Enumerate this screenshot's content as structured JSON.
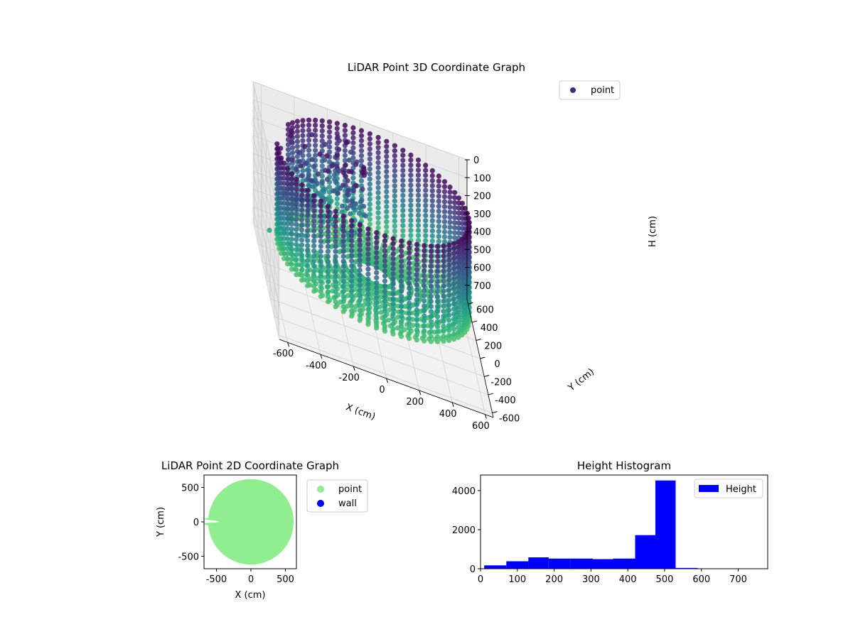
{
  "chart_data": [
    {
      "type": "scatter3d",
      "title": "LiDAR Point 3D Coordinate Graph",
      "xlabel": "X (cm)",
      "ylabel": "Y (cm)",
      "zlabel": "H (cm)",
      "xlim": [
        -650,
        650
      ],
      "ylim": [
        -650,
        650
      ],
      "zlim": [
        0,
        780
      ],
      "z_inverted": true,
      "x_ticks": [
        "-600",
        "-400",
        "-200",
        "0",
        "200",
        "400",
        "600"
      ],
      "y_ticks": [
        "-600",
        "-400",
        "-200",
        "0",
        "200",
        "400",
        "600"
      ],
      "z_ticks": [
        "0",
        "100",
        "200",
        "300",
        "400",
        "500",
        "600",
        "700"
      ],
      "colormap": "viridis",
      "legend": [
        "point"
      ],
      "legend_position": "upper right",
      "wall_radius": 580,
      "wall_height": 560,
      "wall_columns": 72
    },
    {
      "type": "scatter",
      "title": "LiDAR Point 2D Coordinate Graph",
      "xlabel": "X (cm)",
      "ylabel": "Y (cm)",
      "xlim": [
        -680,
        660
      ],
      "ylim": [
        -680,
        680
      ],
      "x_ticks": [
        "-500",
        "0",
        "500"
      ],
      "y_ticks": [
        "-500",
        "0",
        "500"
      ],
      "legend_position": "outside right",
      "series": [
        {
          "name": "point",
          "color": "#90ee90",
          "radius": 620
        },
        {
          "name": "wall",
          "color": "#0000ff"
        }
      ]
    },
    {
      "type": "bar",
      "title": "Height Histogram",
      "xlabel": "",
      "ylabel": "",
      "xlim": [
        0,
        780
      ],
      "ylim": [
        0,
        4800
      ],
      "x_ticks": [
        "0",
        "100",
        "200",
        "300",
        "400",
        "500",
        "600",
        "700"
      ],
      "y_ticks": [
        "0",
        "2000",
        "4000"
      ],
      "legend_position": "upper right",
      "series": [
        {
          "name": "Height",
          "color": "#0000ff",
          "bins": [
            {
              "x0": 10,
              "x1": 70,
              "value": 170
            },
            {
              "x0": 70,
              "x1": 130,
              "value": 380
            },
            {
              "x0": 130,
              "x1": 185,
              "value": 580
            },
            {
              "x0": 185,
              "x1": 245,
              "value": 520
            },
            {
              "x0": 245,
              "x1": 305,
              "value": 520
            },
            {
              "x0": 305,
              "x1": 360,
              "value": 490
            },
            {
              "x0": 360,
              "x1": 420,
              "value": 520
            },
            {
              "x0": 420,
              "x1": 475,
              "value": 1720
            },
            {
              "x0": 475,
              "x1": 530,
              "value": 4520
            },
            {
              "x0": 530,
              "x1": 590,
              "value": 40
            }
          ]
        }
      ]
    }
  ]
}
